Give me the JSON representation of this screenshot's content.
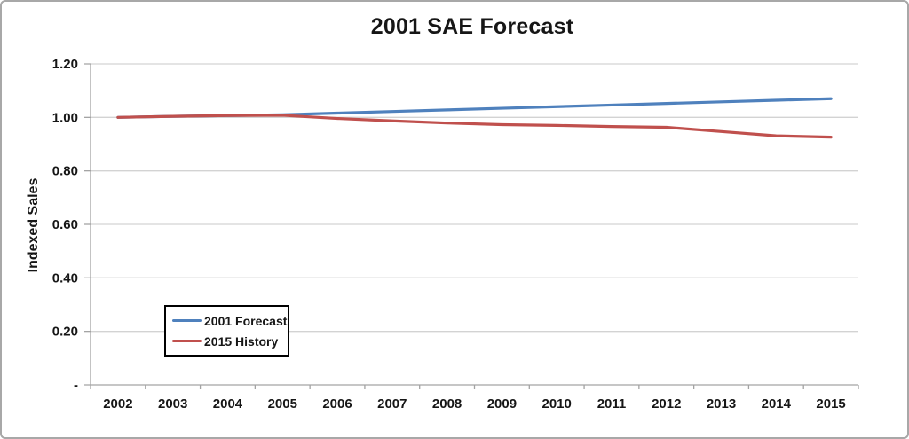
{
  "title": "2001 SAE Forecast",
  "colors": {
    "forecast_line": "#4F81BD",
    "history_line": "#C0504D",
    "gridline": "#D3D3D3",
    "axis": "#A3A3A3",
    "text": "#161616",
    "frame_border": "#A8A8A8",
    "legend_border": "#000000",
    "background": "#FFFFFF"
  },
  "chart_data": {
    "type": "line",
    "title": "2001 SAE Forecast",
    "xlabel": "",
    "ylabel": "Indexed Sales",
    "ylim": [
      0,
      1.2
    ],
    "grid": true,
    "legend_position": "inside-lower-left",
    "categories": [
      "2002",
      "2003",
      "2004",
      "2005",
      "2006",
      "2007",
      "2008",
      "2009",
      "2010",
      "2011",
      "2012",
      "2013",
      "2014",
      "2015"
    ],
    "yticks": [
      {
        "value": 0,
        "label": "-"
      },
      {
        "value": 0.2,
        "label": "0.20"
      },
      {
        "value": 0.4,
        "label": "0.40"
      },
      {
        "value": 0.6,
        "label": "0.60"
      },
      {
        "value": 0.8,
        "label": "0.80"
      },
      {
        "value": 1.0,
        "label": "1.00"
      },
      {
        "value": 1.2,
        "label": "1.20"
      }
    ],
    "series": [
      {
        "name": "2001 Forecast",
        "color": "#4F81BD",
        "values": [
          1.0,
          1.004,
          1.007,
          1.01,
          1.016,
          1.022,
          1.028,
          1.034,
          1.04,
          1.046,
          1.052,
          1.058,
          1.064,
          1.07
        ]
      },
      {
        "name": "2015 History",
        "color": "#C0504D",
        "values": [
          1.0,
          1.004,
          1.007,
          1.008,
          0.996,
          0.987,
          0.979,
          0.973,
          0.97,
          0.966,
          0.963,
          0.947,
          0.931,
          0.926
        ]
      }
    ]
  }
}
